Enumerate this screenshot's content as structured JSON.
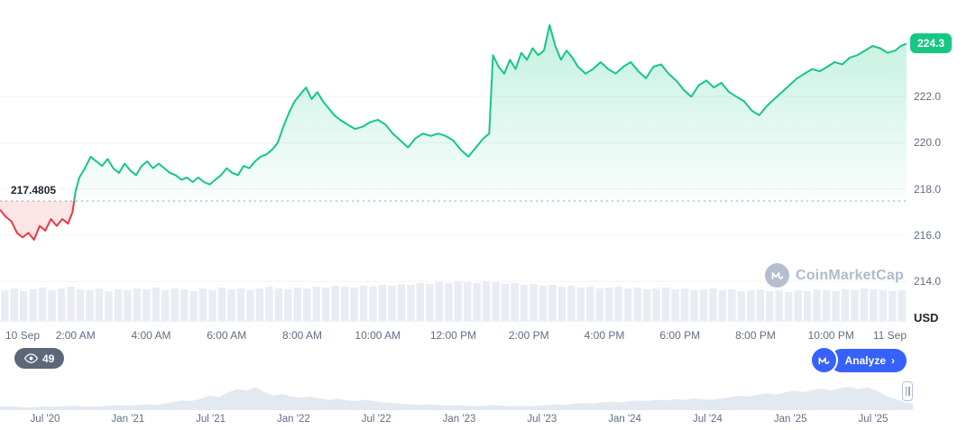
{
  "theme": {
    "green": "#16c784",
    "red": "#ea3943",
    "accent_blue": "#3861fb",
    "badge_dark": "#5d6778",
    "axis_text": "#616e85"
  },
  "chart_data": {
    "type": "line",
    "unit": "USD",
    "current_price": 224.3,
    "current_price_label": "224.3",
    "baseline_value": 217.4805,
    "baseline_label": "217.4805",
    "ylim": [
      211.8,
      225.8
    ],
    "y_ticks": [
      {
        "value": 222,
        "label": "222.0"
      },
      {
        "value": 220,
        "label": "220.0"
      },
      {
        "value": 218,
        "label": "218.0"
      },
      {
        "value": 216,
        "label": "216.0"
      },
      {
        "value": 214,
        "label": "214.0"
      }
    ],
    "x_ticks": [
      {
        "t": 0,
        "label": "10 Sep",
        "align": "left"
      },
      {
        "t": 2,
        "label": "2:00 AM"
      },
      {
        "t": 4,
        "label": "4:00 AM"
      },
      {
        "t": 6,
        "label": "6:00 AM"
      },
      {
        "t": 8,
        "label": "8:00 AM"
      },
      {
        "t": 10,
        "label": "10:00 AM"
      },
      {
        "t": 12,
        "label": "12:00 PM"
      },
      {
        "t": 14,
        "label": "2:00 PM"
      },
      {
        "t": 16,
        "label": "4:00 PM"
      },
      {
        "t": 18,
        "label": "6:00 PM"
      },
      {
        "t": 20,
        "label": "8:00 PM"
      },
      {
        "t": 22,
        "label": "10:00 PM"
      },
      {
        "t": 24,
        "label": "11 Sep",
        "align": "right"
      }
    ],
    "series": [
      {
        "name": "Price (USD)",
        "points": [
          [
            0,
            217.1
          ],
          [
            0.15,
            216.8
          ],
          [
            0.3,
            216.6
          ],
          [
            0.45,
            216.1
          ],
          [
            0.6,
            215.9
          ],
          [
            0.75,
            216.1
          ],
          [
            0.9,
            215.8
          ],
          [
            1.05,
            216.4
          ],
          [
            1.2,
            216.2
          ],
          [
            1.35,
            216.7
          ],
          [
            1.5,
            216.4
          ],
          [
            1.65,
            216.7
          ],
          [
            1.8,
            216.5
          ],
          [
            1.92,
            217.0
          ],
          [
            2.0,
            217.9
          ],
          [
            2.1,
            218.5
          ],
          [
            2.25,
            218.9
          ],
          [
            2.4,
            219.4
          ],
          [
            2.55,
            219.2
          ],
          [
            2.7,
            219.0
          ],
          [
            2.85,
            219.3
          ],
          [
            3.0,
            218.9
          ],
          [
            3.15,
            218.7
          ],
          [
            3.3,
            219.1
          ],
          [
            3.45,
            218.8
          ],
          [
            3.6,
            218.6
          ],
          [
            3.75,
            219.0
          ],
          [
            3.9,
            219.2
          ],
          [
            4.05,
            218.9
          ],
          [
            4.2,
            219.1
          ],
          [
            4.35,
            218.9
          ],
          [
            4.5,
            218.7
          ],
          [
            4.65,
            218.6
          ],
          [
            4.8,
            218.4
          ],
          [
            4.95,
            218.5
          ],
          [
            5.1,
            218.3
          ],
          [
            5.25,
            218.5
          ],
          [
            5.4,
            218.3
          ],
          [
            5.55,
            218.2
          ],
          [
            5.7,
            218.4
          ],
          [
            5.85,
            218.6
          ],
          [
            6.0,
            218.9
          ],
          [
            6.15,
            218.7
          ],
          [
            6.3,
            218.6
          ],
          [
            6.45,
            219.0
          ],
          [
            6.6,
            218.9
          ],
          [
            6.75,
            219.2
          ],
          [
            6.9,
            219.4
          ],
          [
            7.05,
            219.5
          ],
          [
            7.2,
            219.7
          ],
          [
            7.35,
            220.0
          ],
          [
            7.5,
            220.7
          ],
          [
            7.65,
            221.3
          ],
          [
            7.8,
            221.8
          ],
          [
            7.95,
            222.1
          ],
          [
            8.1,
            222.4
          ],
          [
            8.25,
            221.9
          ],
          [
            8.4,
            222.2
          ],
          [
            8.55,
            221.8
          ],
          [
            8.7,
            221.5
          ],
          [
            8.85,
            221.2
          ],
          [
            9.0,
            221.0
          ],
          [
            9.2,
            220.8
          ],
          [
            9.4,
            220.6
          ],
          [
            9.6,
            220.7
          ],
          [
            9.8,
            220.9
          ],
          [
            10.0,
            221.0
          ],
          [
            10.2,
            220.8
          ],
          [
            10.4,
            220.4
          ],
          [
            10.6,
            220.1
          ],
          [
            10.8,
            219.8
          ],
          [
            11.0,
            220.2
          ],
          [
            11.2,
            220.4
          ],
          [
            11.4,
            220.3
          ],
          [
            11.6,
            220.4
          ],
          [
            11.8,
            220.3
          ],
          [
            12.0,
            220.1
          ],
          [
            12.2,
            219.7
          ],
          [
            12.4,
            219.4
          ],
          [
            12.6,
            219.8
          ],
          [
            12.8,
            220.2
          ],
          [
            12.95,
            220.4
          ],
          [
            13.05,
            223.8
          ],
          [
            13.2,
            223.3
          ],
          [
            13.35,
            223.0
          ],
          [
            13.5,
            223.6
          ],
          [
            13.65,
            223.2
          ],
          [
            13.8,
            223.9
          ],
          [
            13.95,
            223.6
          ],
          [
            14.1,
            224.1
          ],
          [
            14.25,
            223.8
          ],
          [
            14.4,
            224.0
          ],
          [
            14.55,
            225.1
          ],
          [
            14.7,
            224.2
          ],
          [
            14.85,
            223.6
          ],
          [
            15.0,
            224.0
          ],
          [
            15.15,
            223.7
          ],
          [
            15.3,
            223.3
          ],
          [
            15.5,
            223.0
          ],
          [
            15.7,
            223.2
          ],
          [
            15.9,
            223.5
          ],
          [
            16.1,
            223.2
          ],
          [
            16.3,
            223.0
          ],
          [
            16.5,
            223.3
          ],
          [
            16.7,
            223.5
          ],
          [
            16.9,
            223.1
          ],
          [
            17.1,
            222.8
          ],
          [
            17.3,
            223.3
          ],
          [
            17.5,
            223.4
          ],
          [
            17.7,
            223.0
          ],
          [
            17.9,
            222.7
          ],
          [
            18.1,
            222.3
          ],
          [
            18.3,
            222.0
          ],
          [
            18.5,
            222.5
          ],
          [
            18.7,
            222.7
          ],
          [
            18.9,
            222.4
          ],
          [
            19.1,
            222.6
          ],
          [
            19.3,
            222.2
          ],
          [
            19.5,
            222.0
          ],
          [
            19.7,
            221.8
          ],
          [
            19.9,
            221.4
          ],
          [
            20.1,
            221.2
          ],
          [
            20.3,
            221.6
          ],
          [
            20.5,
            221.9
          ],
          [
            20.7,
            222.2
          ],
          [
            20.9,
            222.5
          ],
          [
            21.1,
            222.8
          ],
          [
            21.3,
            223.0
          ],
          [
            21.5,
            223.2
          ],
          [
            21.7,
            223.1
          ],
          [
            21.9,
            223.3
          ],
          [
            22.1,
            223.5
          ],
          [
            22.3,
            223.4
          ],
          [
            22.5,
            223.7
          ],
          [
            22.7,
            223.8
          ],
          [
            22.9,
            224.0
          ],
          [
            23.1,
            224.2
          ],
          [
            23.3,
            224.1
          ],
          [
            23.5,
            223.9
          ],
          [
            23.7,
            224.0
          ],
          [
            23.85,
            224.2
          ],
          [
            24,
            224.3
          ]
        ]
      }
    ],
    "volume_bars": [
      34,
      36,
      33,
      35,
      37,
      34,
      36,
      38,
      35,
      34,
      36,
      33,
      35,
      34,
      36,
      35,
      37,
      34,
      36,
      35,
      33,
      36,
      34,
      37,
      35,
      36,
      34,
      36,
      38,
      36,
      35,
      37,
      36,
      38,
      37,
      39,
      38,
      37,
      39,
      38,
      40,
      39,
      41,
      40,
      42,
      41,
      43,
      42,
      44,
      43,
      42,
      44,
      43,
      41,
      42,
      40,
      41,
      39,
      40,
      38,
      39,
      37,
      38,
      36,
      37,
      38,
      36,
      37,
      35,
      36,
      37,
      35,
      36,
      34,
      35,
      36,
      34,
      35,
      33,
      34,
      35,
      33,
      34,
      32,
      34,
      33,
      35,
      34,
      33,
      35,
      34,
      36,
      35,
      34,
      33,
      34
    ],
    "colors": {
      "up": "#16c784",
      "down": "#ea3943",
      "down_fill": "rgba(234,57,67,0.13)",
      "grid": "#eff2f5",
      "baseline": "#9aa4b8",
      "volume": "#e9edf3",
      "axis_text": "#616e85"
    }
  },
  "navigator": {
    "fill": "#e3e9f0",
    "values": [
      0.1,
      0.12,
      0.1,
      0.08,
      0.1,
      0.12,
      0.1,
      0.12,
      0.14,
      0.12,
      0.1,
      0.12,
      0.14,
      0.16,
      0.14,
      0.16,
      0.18,
      0.16,
      0.2,
      0.25,
      0.3,
      0.28,
      0.35,
      0.45,
      0.4,
      0.55,
      0.65,
      0.6,
      0.7,
      0.55,
      0.45,
      0.5,
      0.42,
      0.38,
      0.42,
      0.36,
      0.32,
      0.35,
      0.3,
      0.28,
      0.32,
      0.28,
      0.24,
      0.22,
      0.2,
      0.18,
      0.16,
      0.18,
      0.16,
      0.14,
      0.16,
      0.14,
      0.12,
      0.14,
      0.16,
      0.14,
      0.12,
      0.14,
      0.12,
      0.14,
      0.16,
      0.18,
      0.16,
      0.2,
      0.22,
      0.2,
      0.24,
      0.26,
      0.24,
      0.28,
      0.3,
      0.28,
      0.32,
      0.3,
      0.34,
      0.32,
      0.36,
      0.34,
      0.32,
      0.36,
      0.4,
      0.44,
      0.42,
      0.48,
      0.52,
      0.48,
      0.55,
      0.6,
      0.56,
      0.62,
      0.66,
      0.6,
      0.68,
      0.72,
      0.65,
      0.7,
      0.6,
      0.45,
      0.35,
      0.25,
      0.2
    ],
    "labels": [
      "Jul '20",
      "Jan '21",
      "Jul '21",
      "Jan '22",
      "Jul '22",
      "Jan '23",
      "Jul '23",
      "Jan '24",
      "Jul '24",
      "Jan '25",
      "Jul '25"
    ]
  },
  "controls": {
    "watchers": "49",
    "analyze_label": "Analyze",
    "chevron": "›"
  },
  "watermark": {
    "text": "CoinMarketCap"
  },
  "icons": {
    "watchers": "eye-icon",
    "analyze": "coinmarketcap-logo",
    "nav_handle": "drag-handle-icon"
  }
}
